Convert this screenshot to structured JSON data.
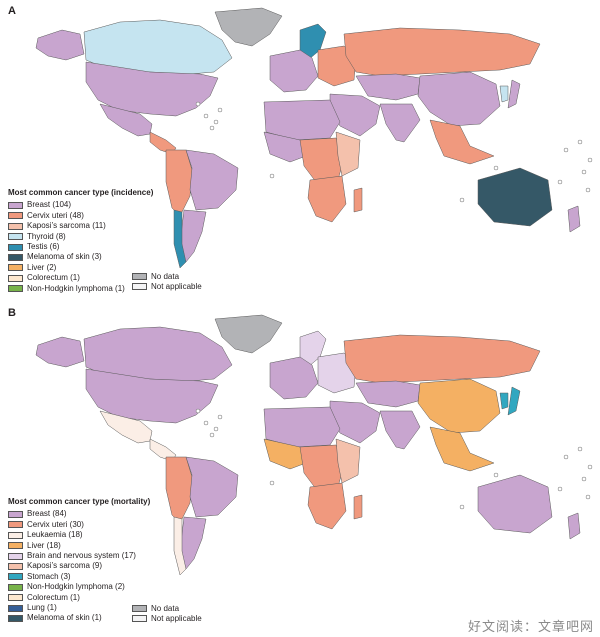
{
  "colors": {
    "breast": "#c8a5cf",
    "cervix": "#f0997e",
    "kaposi": "#f4c1ac",
    "thyroid": "#c5e4f0",
    "testis": "#2f8fb0",
    "melanoma": "#355867",
    "liver": "#f4b063",
    "colorectum": "#fde8cf",
    "nhl": "#78b34a",
    "leukaemia": "#fbeee6",
    "brain": "#e4d3ea",
    "stomach": "#31a7c0",
    "lung": "#355f98",
    "nodata": "#b2b3b6",
    "na": "#f4f4f5",
    "ocean_dots": "#ffffff"
  },
  "panels": [
    {
      "letter": "A",
      "legend_title": "Most common cancer type (incidence)",
      "legend": [
        {
          "label": "Breast (104)",
          "color": "breast"
        },
        {
          "label": "Cervix uteri (48)",
          "color": "cervix"
        },
        {
          "label": "Kaposi’s sarcoma (11)",
          "color": "kaposi"
        },
        {
          "label": "Thyroid (8)",
          "color": "thyroid"
        },
        {
          "label": "Testis (6)",
          "color": "testis"
        },
        {
          "label": "Melanoma of skin (3)",
          "color": "melanoma"
        },
        {
          "label": "Liver (2)",
          "color": "liver"
        },
        {
          "label": "Colorectum (1)",
          "color": "colorectum"
        },
        {
          "label": "Non-Hodgkin lymphoma (1)",
          "color": "nhl"
        }
      ],
      "extras": [
        {
          "label": "No data",
          "color": "nodata"
        },
        {
          "label": "Not applicable",
          "color": "na"
        }
      ]
    },
    {
      "letter": "B",
      "legend_title": "Most common cancer type (mortality)",
      "legend": [
        {
          "label": "Breast (84)",
          "color": "breast"
        },
        {
          "label": "Cervix uteri (30)",
          "color": "cervix"
        },
        {
          "label": "Leukaemia (18)",
          "color": "leukaemia"
        },
        {
          "label": "Liver (18)",
          "color": "liver"
        },
        {
          "label": "Brain and nervous system (17)",
          "color": "brain"
        },
        {
          "label": "Kaposi’s sarcoma (9)",
          "color": "kaposi"
        },
        {
          "label": "Stomach (3)",
          "color": "stomach"
        },
        {
          "label": "Non-Hodgkin lymphoma (2)",
          "color": "nhl"
        },
        {
          "label": "Colorectum (1)",
          "color": "colorectum"
        },
        {
          "label": "Lung (1)",
          "color": "lung"
        },
        {
          "label": "Melanoma of skin (1)",
          "color": "melanoma"
        }
      ],
      "extras": [
        {
          "label": "No data",
          "color": "nodata"
        },
        {
          "label": "Not applicable",
          "color": "na"
        }
      ]
    }
  ],
  "regions_A": {
    "greenland": "nodata",
    "canada": "thyroid",
    "usa": "breast",
    "alaska": "breast",
    "mexico": "breast",
    "central_america": "cervix",
    "south_america_east": "breast",
    "south_america_west": "cervix",
    "chile": "testis",
    "argentina": "breast",
    "europe_west": "breast",
    "scandinavia": "testis",
    "europe_east": "cervix",
    "russia": "cervix",
    "middle_east": "breast",
    "central_asia": "breast",
    "china": "breast",
    "india": "breast",
    "se_asia": "cervix",
    "north_africa": "breast",
    "west_africa": "breast",
    "central_africa": "cervix",
    "east_africa": "kaposi",
    "southern_africa": "cervix",
    "madagascar": "cervix",
    "australia": "melanoma",
    "new_zealand": "breast",
    "japan": "breast",
    "korea": "thyroid",
    "antarctica_na": "na"
  },
  "regions_B": {
    "greenland": "nodata",
    "canada": "breast",
    "usa": "breast",
    "alaska": "breast",
    "mexico": "leukaemia",
    "central_america": "leukaemia",
    "south_america_east": "breast",
    "south_america_west": "cervix",
    "chile": "leukaemia",
    "argentina": "breast",
    "europe_west": "breast",
    "scandinavia": "brain",
    "europe_east": "brain",
    "russia": "cervix",
    "middle_east": "breast",
    "central_asia": "breast",
    "china": "liver",
    "india": "breast",
    "se_asia": "liver",
    "north_africa": "breast",
    "west_africa": "liver",
    "central_africa": "cervix",
    "east_africa": "kaposi",
    "southern_africa": "cervix",
    "madagascar": "cervix",
    "australia": "breast",
    "new_zealand": "breast",
    "japan": "stomach",
    "korea": "stomach",
    "antarctica_na": "na"
  },
  "watermark": "好文阅读：文章吧网"
}
